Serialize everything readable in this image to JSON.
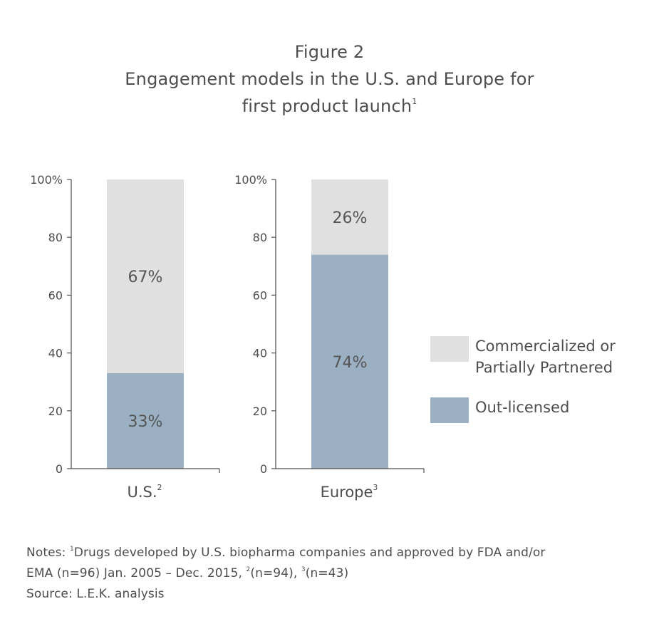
{
  "figure_label": "Figure 2",
  "title_line1": "Engagement models in the U.S. and Europe for",
  "title_line2": "first product launch",
  "title_sup": "1",
  "chart_data": [
    {
      "type": "bar",
      "stacked": true,
      "categories": [
        "U.S."
      ],
      "category_sup": "2",
      "series": [
        {
          "name": "Out-licensed",
          "values": [
            33
          ],
          "color": "#9bb1c3",
          "label": "33%"
        },
        {
          "name": "Commercialized or Partially Partnered",
          "values": [
            67
          ],
          "color": "#e0e0e0",
          "label": "67%"
        }
      ],
      "ylim": [
        0,
        100
      ],
      "yticks": [
        "0",
        "20",
        "40",
        "60",
        "80",
        "100%"
      ]
    },
    {
      "type": "bar",
      "stacked": true,
      "categories": [
        "Europe"
      ],
      "category_sup": "3",
      "series": [
        {
          "name": "Out-licensed",
          "values": [
            74
          ],
          "color": "#9bb1c3",
          "label": "74%"
        },
        {
          "name": "Commercialized or Partially Partnered",
          "values": [
            26
          ],
          "color": "#e0e0e0",
          "label": "26%"
        }
      ],
      "ylim": [
        0,
        100
      ],
      "yticks": [
        "0",
        "20",
        "40",
        "60",
        "80",
        "100%"
      ]
    }
  ],
  "legend": {
    "items": [
      {
        "label_line1": "Commercialized or",
        "label_line2": "Partially Partnered",
        "color": "#e0e0e0"
      },
      {
        "label_line1": "Out-licensed",
        "label_line2": "",
        "color": "#9bb1c3"
      }
    ]
  },
  "notes": {
    "prefix": "Notes: ",
    "sup1": "1",
    "line1_text": "Drugs developed by U.S. biopharma companies and approved by FDA and/or",
    "line2_start": "EMA (n=96) Jan. 2005 – Dec. 2015, ",
    "sup2": "2",
    "line2_mid": "(n=94), ",
    "sup3": "3",
    "line2_end": "(n=43)",
    "source": "Source: L.E.K. analysis"
  }
}
